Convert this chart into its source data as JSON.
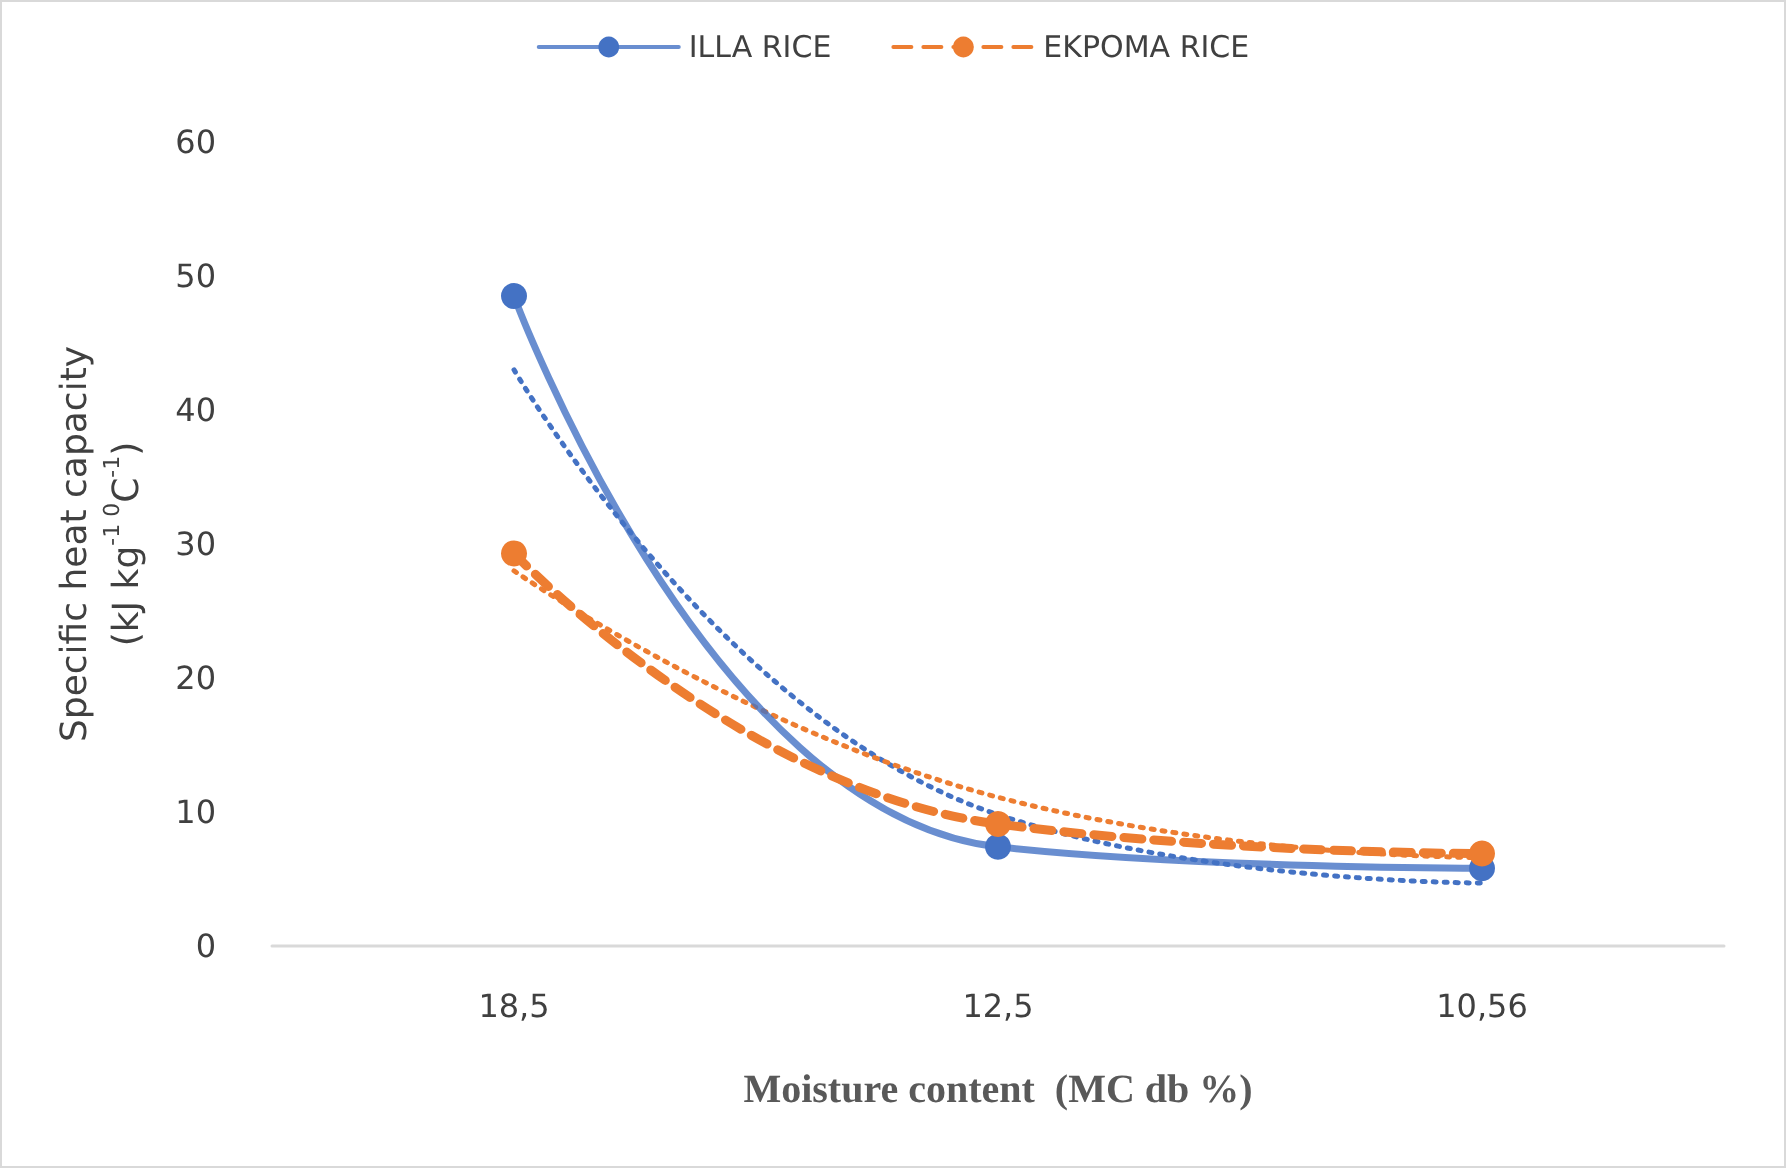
{
  "chart_data": {
    "type": "line",
    "xlabel": "Moisture content  (MC db %)",
    "ylabel": "Specific heat capacity\n(kJ kg$^{-1 0}$C$^{-1}$)",
    "categories": [
      "18,5",
      "12,5",
      "10,56"
    ],
    "series": [
      {
        "name": "ILLA RICE",
        "color": "#4472c4",
        "values": [
          48.5,
          7.4,
          5.8
        ],
        "line_style": "solid",
        "marker": "circle"
      },
      {
        "name": "EKPOMA RICE",
        "color": "#ed7d31",
        "values": [
          29.3,
          9.1,
          6.9
        ],
        "line_style": "dashed",
        "marker": "circle"
      },
      {
        "color": "#4472c4",
        "values": [
          43,
          9.8,
          4.7
        ],
        "line_style": "dotted",
        "marker": "none"
      },
      {
        "color": "#ed7d31",
        "values": [
          28,
          11.1,
          6.6
        ],
        "line_style": "dotted",
        "marker": "none"
      }
    ],
    "ylim": [
      0,
      60
    ],
    "yticks": [
      0,
      10,
      20,
      30,
      40,
      50,
      60
    ],
    "grid": false,
    "legend": "top"
  }
}
